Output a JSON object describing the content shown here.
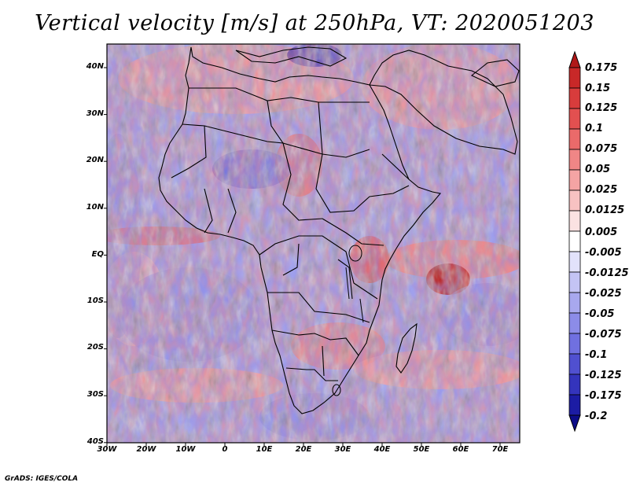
{
  "title": "Vertical velocity [m/s] at 250hPa, VT: 2020051203",
  "credit": "GrADS: IGES/COLA",
  "latitude_labels": [
    "40N",
    "30N",
    "20N",
    "10N",
    "EQ",
    "10S",
    "20S",
    "30S",
    "40S"
  ],
  "longitude_labels": [
    "30W",
    "20W",
    "10W",
    "0",
    "10E",
    "20E",
    "30E",
    "40E",
    "50E",
    "60E",
    "70E"
  ],
  "map": {
    "lon_range": [
      -30,
      75
    ],
    "lat_range": [
      -40,
      45
    ],
    "region": "Africa"
  },
  "colorbar": {
    "labels": [
      "0.175",
      "0.15",
      "0.125",
      "0.1",
      "0.075",
      "0.05",
      "0.025",
      "0.0125",
      "0.005",
      "-0.005",
      "-0.0125",
      "-0.025",
      "-0.05",
      "-0.075",
      "-0.1",
      "-0.125",
      "-0.175",
      "-0.2"
    ],
    "colors": [
      "#b01818",
      "#c82828",
      "#d83c3c",
      "#e25050",
      "#ea6a6a",
      "#f08686",
      "#f4a4a4",
      "#f8c2c2",
      "#fbe2e2",
      "#ffffff",
      "#e2e2fb",
      "#c4c4f4",
      "#a8a8ee",
      "#8c8ce8",
      "#7070e0",
      "#5050d0",
      "#3434bc",
      "#1c1ca4",
      "#0c0c88"
    ]
  }
}
